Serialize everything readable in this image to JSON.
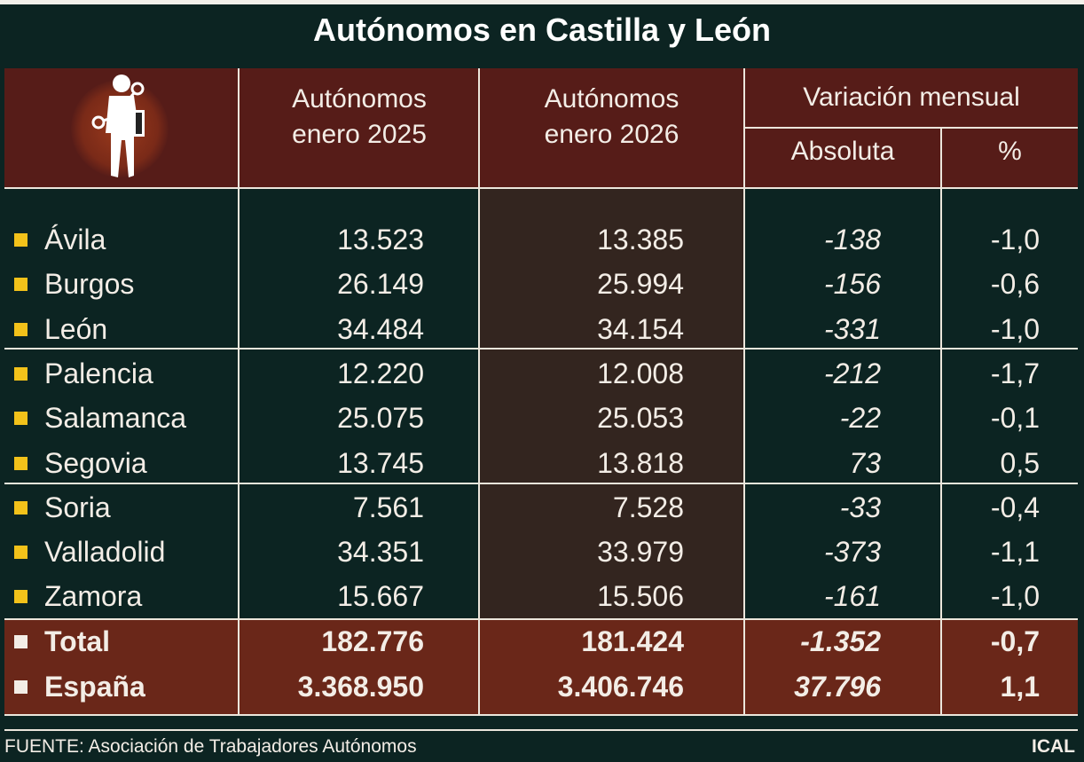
{
  "title": "Autónomos en Castilla y León",
  "colors": {
    "background": "#0c2422",
    "header": "#561c18",
    "total_band": "#6a2719",
    "marker": "#f3c21a"
  },
  "icon": "self-employed-worker-silhouette-icon",
  "chart_data": {
    "type": "table",
    "title": "Autónomos en Castilla y León",
    "columns": {
      "c2025": "Autónomos enero 2025",
      "c2025_l1": "Autónomos",
      "c2025_l2": "enero 2025",
      "c2026_l1": "Autónomos",
      "c2026_l2": "enero 2026",
      "variation": "Variación mensual",
      "absolute": "Absoluta",
      "percent": "%"
    },
    "rows": [
      {
        "name": "Ávila",
        "y2025": "13.523",
        "y2026": "13.385",
        "abs": "-138",
        "pct": "-1,0"
      },
      {
        "name": "Burgos",
        "y2025": "26.149",
        "y2026": "25.994",
        "abs": "-156",
        "pct": "-0,6"
      },
      {
        "name": "León",
        "y2025": "34.484",
        "y2026": "34.154",
        "abs": "-331",
        "pct": "-1,0"
      },
      {
        "name": "Palencia",
        "y2025": "12.220",
        "y2026": "12.008",
        "abs": "-212",
        "pct": "-1,7"
      },
      {
        "name": "Salamanca",
        "y2025": "25.075",
        "y2026": "25.053",
        "abs": "-22",
        "pct": "-0,1"
      },
      {
        "name": "Segovia",
        "y2025": "13.745",
        "y2026": "13.818",
        "abs": "73",
        "pct": "0,5"
      },
      {
        "name": "Soria",
        "y2025": "7.561",
        "y2026": "7.528",
        "abs": "-33",
        "pct": "-0,4"
      },
      {
        "name": "Valladolid",
        "y2025": "34.351",
        "y2026": "33.979",
        "abs": "-373",
        "pct": "-1,1"
      },
      {
        "name": "Zamora",
        "y2025": "15.667",
        "y2026": "15.506",
        "abs": "-161",
        "pct": "-1,0"
      }
    ],
    "totals": [
      {
        "name": "Total",
        "y2025": "182.776",
        "y2026": "181.424",
        "abs": "-1.352",
        "pct": "-0,7"
      },
      {
        "name": "España",
        "y2025": "3.368.950",
        "y2026": "3.406.746",
        "abs": "37.796",
        "pct": "1,1"
      }
    ]
  },
  "footer": {
    "source": "FUENTE: Asociación de Trabajadores Autónomos",
    "credit": "ICAL"
  }
}
